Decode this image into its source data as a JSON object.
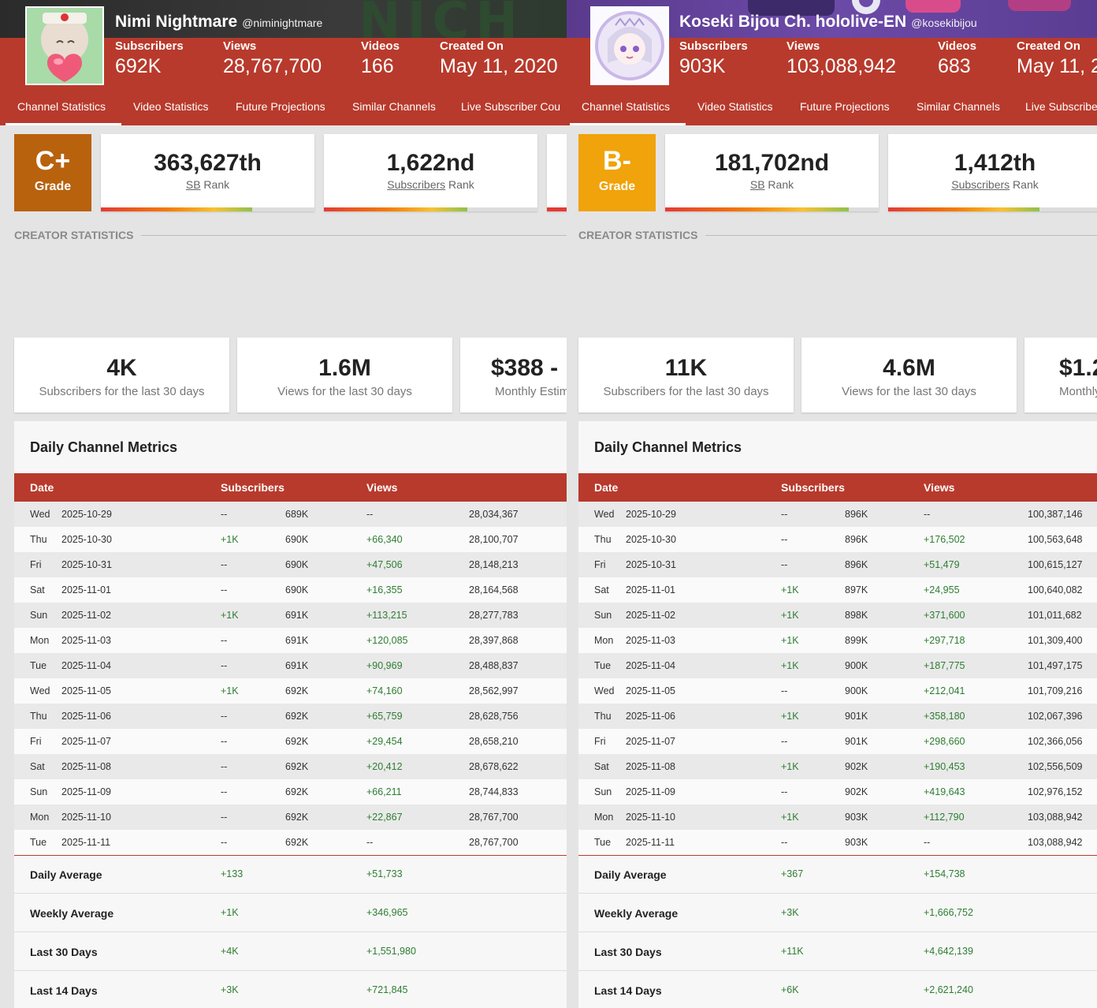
{
  "panels": [
    {
      "channel": {
        "name": "Nimi Nightmare",
        "handle": "@niminightmare",
        "banner_letters": "NICH",
        "stats": [
          {
            "label": "Subscribers",
            "value": "692K"
          },
          {
            "label": "Views",
            "value": "28,767,700"
          },
          {
            "label": "Videos",
            "value": "166"
          },
          {
            "label": "Created On",
            "value": "May 11, 2020"
          }
        ]
      },
      "tabs": [
        "Channel Statistics",
        "Video Statistics",
        "Future Projections",
        "Similar Channels",
        "Live Subscriber Cou"
      ],
      "grade": {
        "value": "C+",
        "label": "Grade",
        "color": "#b8620e"
      },
      "ranks": [
        {
          "value": "363,627th",
          "term": "SB",
          "suffix": " Rank",
          "fill": 0.71
        },
        {
          "value": "1,622nd",
          "term": "Subscribers",
          "suffix": " Rank",
          "fill": 0.67
        }
      ],
      "section_title": "CREATOR STATISTICS",
      "cards": [
        {
          "value": "4K",
          "label": "Subscribers for the last 30 days"
        },
        {
          "value": "1.6M",
          "label": "Views for the last 30 days"
        },
        {
          "value": "$388 -",
          "label": "Monthly Estim"
        }
      ],
      "metrics": {
        "title": "Daily Channel Metrics",
        "headers": [
          "Date",
          "Subscribers",
          "Views"
        ],
        "rows": [
          {
            "day": "Wed",
            "date": "2025-10-29",
            "sub_change": "--",
            "subs": "689K",
            "view_change": "--",
            "views": "28,034,367"
          },
          {
            "day": "Thu",
            "date": "2025-10-30",
            "sub_change": "+1K",
            "subs": "690K",
            "view_change": "+66,340",
            "views": "28,100,707"
          },
          {
            "day": "Fri",
            "date": "2025-10-31",
            "sub_change": "--",
            "subs": "690K",
            "view_change": "+47,506",
            "views": "28,148,213"
          },
          {
            "day": "Sat",
            "date": "2025-11-01",
            "sub_change": "--",
            "subs": "690K",
            "view_change": "+16,355",
            "views": "28,164,568"
          },
          {
            "day": "Sun",
            "date": "2025-11-02",
            "sub_change": "+1K",
            "subs": "691K",
            "view_change": "+113,215",
            "views": "28,277,783"
          },
          {
            "day": "Mon",
            "date": "2025-11-03",
            "sub_change": "--",
            "subs": "691K",
            "view_change": "+120,085",
            "views": "28,397,868"
          },
          {
            "day": "Tue",
            "date": "2025-11-04",
            "sub_change": "--",
            "subs": "691K",
            "view_change": "+90,969",
            "views": "28,488,837"
          },
          {
            "day": "Wed",
            "date": "2025-11-05",
            "sub_change": "+1K",
            "subs": "692K",
            "view_change": "+74,160",
            "views": "28,562,997"
          },
          {
            "day": "Thu",
            "date": "2025-11-06",
            "sub_change": "--",
            "subs": "692K",
            "view_change": "+65,759",
            "views": "28,628,756"
          },
          {
            "day": "Fri",
            "date": "2025-11-07",
            "sub_change": "--",
            "subs": "692K",
            "view_change": "+29,454",
            "views": "28,658,210"
          },
          {
            "day": "Sat",
            "date": "2025-11-08",
            "sub_change": "--",
            "subs": "692K",
            "view_change": "+20,412",
            "views": "28,678,622"
          },
          {
            "day": "Sun",
            "date": "2025-11-09",
            "sub_change": "--",
            "subs": "692K",
            "view_change": "+66,211",
            "views": "28,744,833"
          },
          {
            "day": "Mon",
            "date": "2025-11-10",
            "sub_change": "--",
            "subs": "692K",
            "view_change": "+22,867",
            "views": "28,767,700"
          },
          {
            "day": "Tue",
            "date": "2025-11-11",
            "sub_change": "--",
            "subs": "692K",
            "view_change": "--",
            "views": "28,767,700"
          }
        ],
        "summary": [
          {
            "label": "Daily Average",
            "subs": "+133",
            "views": "+51,733"
          },
          {
            "label": "Weekly Average",
            "subs": "+1K",
            "views": "+346,965"
          },
          {
            "label": "Last 30 Days",
            "subs": "+4K",
            "views": "+1,551,980"
          },
          {
            "label": "Last 14 Days",
            "subs": "+3K",
            "views": "+721,845"
          }
        ]
      }
    },
    {
      "channel": {
        "name": "Koseki Bijou Ch. hololive-EN",
        "handle": "@kosekibijou",
        "banner_letters": "",
        "stats": [
          {
            "label": "Subscribers",
            "value": "903K"
          },
          {
            "label": "Views",
            "value": "103,088,942"
          },
          {
            "label": "Videos",
            "value": "683"
          },
          {
            "label": "Created On",
            "value": "May 11, 2"
          }
        ]
      },
      "tabs": [
        "Channel Statistics",
        "Video Statistics",
        "Future Projections",
        "Similar Channels",
        "Live Subscribe"
      ],
      "grade": {
        "value": "B-",
        "label": "Grade",
        "color": "#f0a30a"
      },
      "ranks": [
        {
          "value": "181,702nd",
          "term": "SB",
          "suffix": " Rank",
          "fill": 0.86
        },
        {
          "value": "1,412th",
          "term": "Subscribers",
          "suffix": " Rank",
          "fill": 0.71
        }
      ],
      "section_title": "CREATOR STATISTICS",
      "cards": [
        {
          "value": "11K",
          "label": "Subscribers for the last 30 days"
        },
        {
          "value": "4.6M",
          "label": "Views for the last 30 days"
        },
        {
          "value": "$1.2",
          "label": "Monthly"
        }
      ],
      "metrics": {
        "title": "Daily Channel Metrics",
        "headers": [
          "Date",
          "Subscribers",
          "Views"
        ],
        "rows": [
          {
            "day": "Wed",
            "date": "2025-10-29",
            "sub_change": "--",
            "subs": "896K",
            "view_change": "--",
            "views": "100,387,146"
          },
          {
            "day": "Thu",
            "date": "2025-10-30",
            "sub_change": "--",
            "subs": "896K",
            "view_change": "+176,502",
            "views": "100,563,648"
          },
          {
            "day": "Fri",
            "date": "2025-10-31",
            "sub_change": "--",
            "subs": "896K",
            "view_change": "+51,479",
            "views": "100,615,127"
          },
          {
            "day": "Sat",
            "date": "2025-11-01",
            "sub_change": "+1K",
            "subs": "897K",
            "view_change": "+24,955",
            "views": "100,640,082"
          },
          {
            "day": "Sun",
            "date": "2025-11-02",
            "sub_change": "+1K",
            "subs": "898K",
            "view_change": "+371,600",
            "views": "101,011,682"
          },
          {
            "day": "Mon",
            "date": "2025-11-03",
            "sub_change": "+1K",
            "subs": "899K",
            "view_change": "+297,718",
            "views": "101,309,400"
          },
          {
            "day": "Tue",
            "date": "2025-11-04",
            "sub_change": "+1K",
            "subs": "900K",
            "view_change": "+187,775",
            "views": "101,497,175"
          },
          {
            "day": "Wed",
            "date": "2025-11-05",
            "sub_change": "--",
            "subs": "900K",
            "view_change": "+212,041",
            "views": "101,709,216"
          },
          {
            "day": "Thu",
            "date": "2025-11-06",
            "sub_change": "+1K",
            "subs": "901K",
            "view_change": "+358,180",
            "views": "102,067,396"
          },
          {
            "day": "Fri",
            "date": "2025-11-07",
            "sub_change": "--",
            "subs": "901K",
            "view_change": "+298,660",
            "views": "102,366,056"
          },
          {
            "day": "Sat",
            "date": "2025-11-08",
            "sub_change": "+1K",
            "subs": "902K",
            "view_change": "+190,453",
            "views": "102,556,509"
          },
          {
            "day": "Sun",
            "date": "2025-11-09",
            "sub_change": "--",
            "subs": "902K",
            "view_change": "+419,643",
            "views": "102,976,152"
          },
          {
            "day": "Mon",
            "date": "2025-11-10",
            "sub_change": "+1K",
            "subs": "903K",
            "view_change": "+112,790",
            "views": "103,088,942"
          },
          {
            "day": "Tue",
            "date": "2025-11-11",
            "sub_change": "--",
            "subs": "903K",
            "view_change": "--",
            "views": "103,088,942"
          }
        ],
        "summary": [
          {
            "label": "Daily Average",
            "subs": "+367",
            "views": "+154,738"
          },
          {
            "label": "Weekly Average",
            "subs": "+3K",
            "views": "+1,666,752"
          },
          {
            "label": "Last 30 Days",
            "subs": "+11K",
            "views": "+4,642,139"
          },
          {
            "label": "Last 14 Days",
            "subs": "+6K",
            "views": "+2,621,240"
          }
        ]
      }
    }
  ]
}
